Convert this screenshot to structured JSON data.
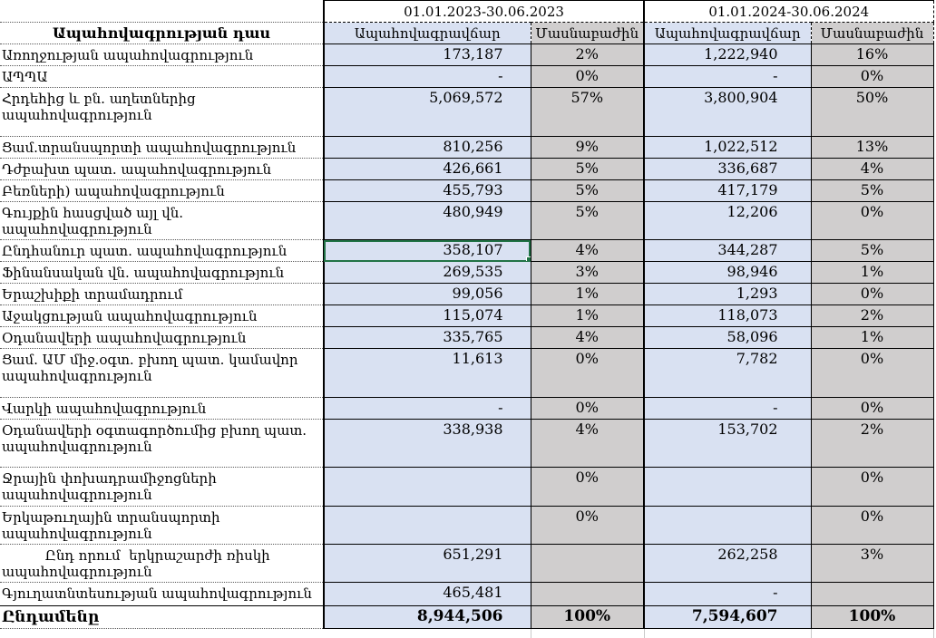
{
  "table": {
    "class_header": "Ապահովագրության դաս",
    "periods": [
      {
        "label": "01.01.2023-30.06.2023",
        "premium_header": "Ապահովագրավճար",
        "share_header": "Մասնաբաժին"
      },
      {
        "label": "01.01.2024-30.06.2024",
        "premium_header": "Ապահովագրավճար",
        "share_header": "Մասնաբաժին"
      }
    ],
    "rows": [
      {
        "label": "Առողջության ապահովագրություն",
        "premium_2023": "173,187",
        "share_2023": "2%",
        "premium_2024": "1,222,940",
        "share_2024": "16%"
      },
      {
        "label": "ԱՊՊԱ",
        "premium_2023": "-",
        "share_2023": "0%",
        "premium_2024": "-",
        "share_2024": "0%"
      },
      {
        "label": "Հրդեհից և բն. աղետներից\nապահովագրություն",
        "premium_2023": "5,069,572",
        "share_2023": "57%",
        "premium_2024": "3,800,904",
        "share_2024": "50%"
      },
      {
        "label": "Ցամ.տրանսպորտի ապահովագրություն",
        "premium_2023": "810,256",
        "share_2023": "9%",
        "premium_2024": "1,022,512",
        "share_2024": "13%"
      },
      {
        "label": "Դժբախտ պատ. ապահովագրություն",
        "premium_2023": "426,661",
        "share_2023": "5%",
        "premium_2024": "336,687",
        "share_2024": "4%"
      },
      {
        "label": "Բեռների) ապահովագրություն",
        "premium_2023": "455,793",
        "share_2023": "5%",
        "premium_2024": "417,179",
        "share_2024": "5%"
      },
      {
        "label": "Գույքին հասցված այլ վն. ապահովագրություն",
        "premium_2023": "480,949",
        "share_2023": "5%",
        "premium_2024": "12,206",
        "share_2024": "0%"
      },
      {
        "label": "Ընդհանուր պատ. ապահովագրություն",
        "premium_2023": "358,107",
        "share_2023": "4%",
        "premium_2024": "344,287",
        "share_2024": "5%"
      },
      {
        "label": "Ֆինանսական վն. ապահովագրություն",
        "premium_2023": "269,535",
        "share_2023": "3%",
        "premium_2024": "98,946",
        "share_2024": "1%"
      },
      {
        "label": "Երաշխիքի տրամադրում",
        "premium_2023": "99,056",
        "share_2023": "1%",
        "premium_2024": "1,293",
        "share_2024": "0%"
      },
      {
        "label": "Աջակցության ապահովագրություն",
        "premium_2023": "115,074",
        "share_2023": "1%",
        "premium_2024": "118,073",
        "share_2024": "2%"
      },
      {
        "label": "Օդանավերի ապահովագրություն",
        "premium_2023": "335,765",
        "share_2023": "4%",
        "premium_2024": "58,096",
        "share_2024": "1%"
      },
      {
        "label": "Ցամ. ԱՄ միջ.օգտ. բխող պատ. կամավոր\nապահովագրություն",
        "premium_2023": "11,613",
        "share_2023": "0%",
        "premium_2024": "7,782",
        "share_2024": "0%"
      },
      {
        "label": "Վարկի ապահովագրություն",
        "premium_2023": "-",
        "share_2023": "0%",
        "premium_2024": "-",
        "share_2024": "0%"
      },
      {
        "label": "Օդանավերի օգտագործումից բխող պատ.\nապահովագրություն",
        "premium_2023": "338,938",
        "share_2023": "4%",
        "premium_2024": "153,702",
        "share_2024": "2%"
      },
      {
        "label": "Ջրային փոխադրամիջոցների\nապահովագրություն",
        "premium_2023": "",
        "share_2023": "0%",
        "premium_2024": "",
        "share_2024": "0%"
      },
      {
        "label": "Երկաթուղային տրանսպորտի\nապահովագրություն",
        "premium_2023": "",
        "share_2023": "0%",
        "premium_2024": "",
        "share_2024": "0%"
      },
      {
        "label": "          Ընդ որում  երկրաշարժի ռիսկի\nապահովագրություն",
        "premium_2023": "651,291",
        "share_2023": "",
        "premium_2024": "262,258",
        "share_2024": "3%"
      },
      {
        "label": "Գյուղատնտեսության ապահովագրություն",
        "premium_2023": "465,481",
        "share_2023": "",
        "premium_2024": "-",
        "share_2024": ""
      }
    ],
    "total_row": {
      "label": "Ընդամենը",
      "premium_2023": "8,944,506",
      "share_2023": "100%",
      "premium_2024": "7,594,607",
      "share_2024": "100%"
    },
    "selection": {
      "row_index": 7,
      "column": "premium_2023"
    }
  },
  "colors": {
    "premium_bg": "#d9e1f2",
    "share_bg": "#d0cece",
    "selection_green": "#217346",
    "grid_line": "#000000",
    "dotted_line": "#595959"
  }
}
